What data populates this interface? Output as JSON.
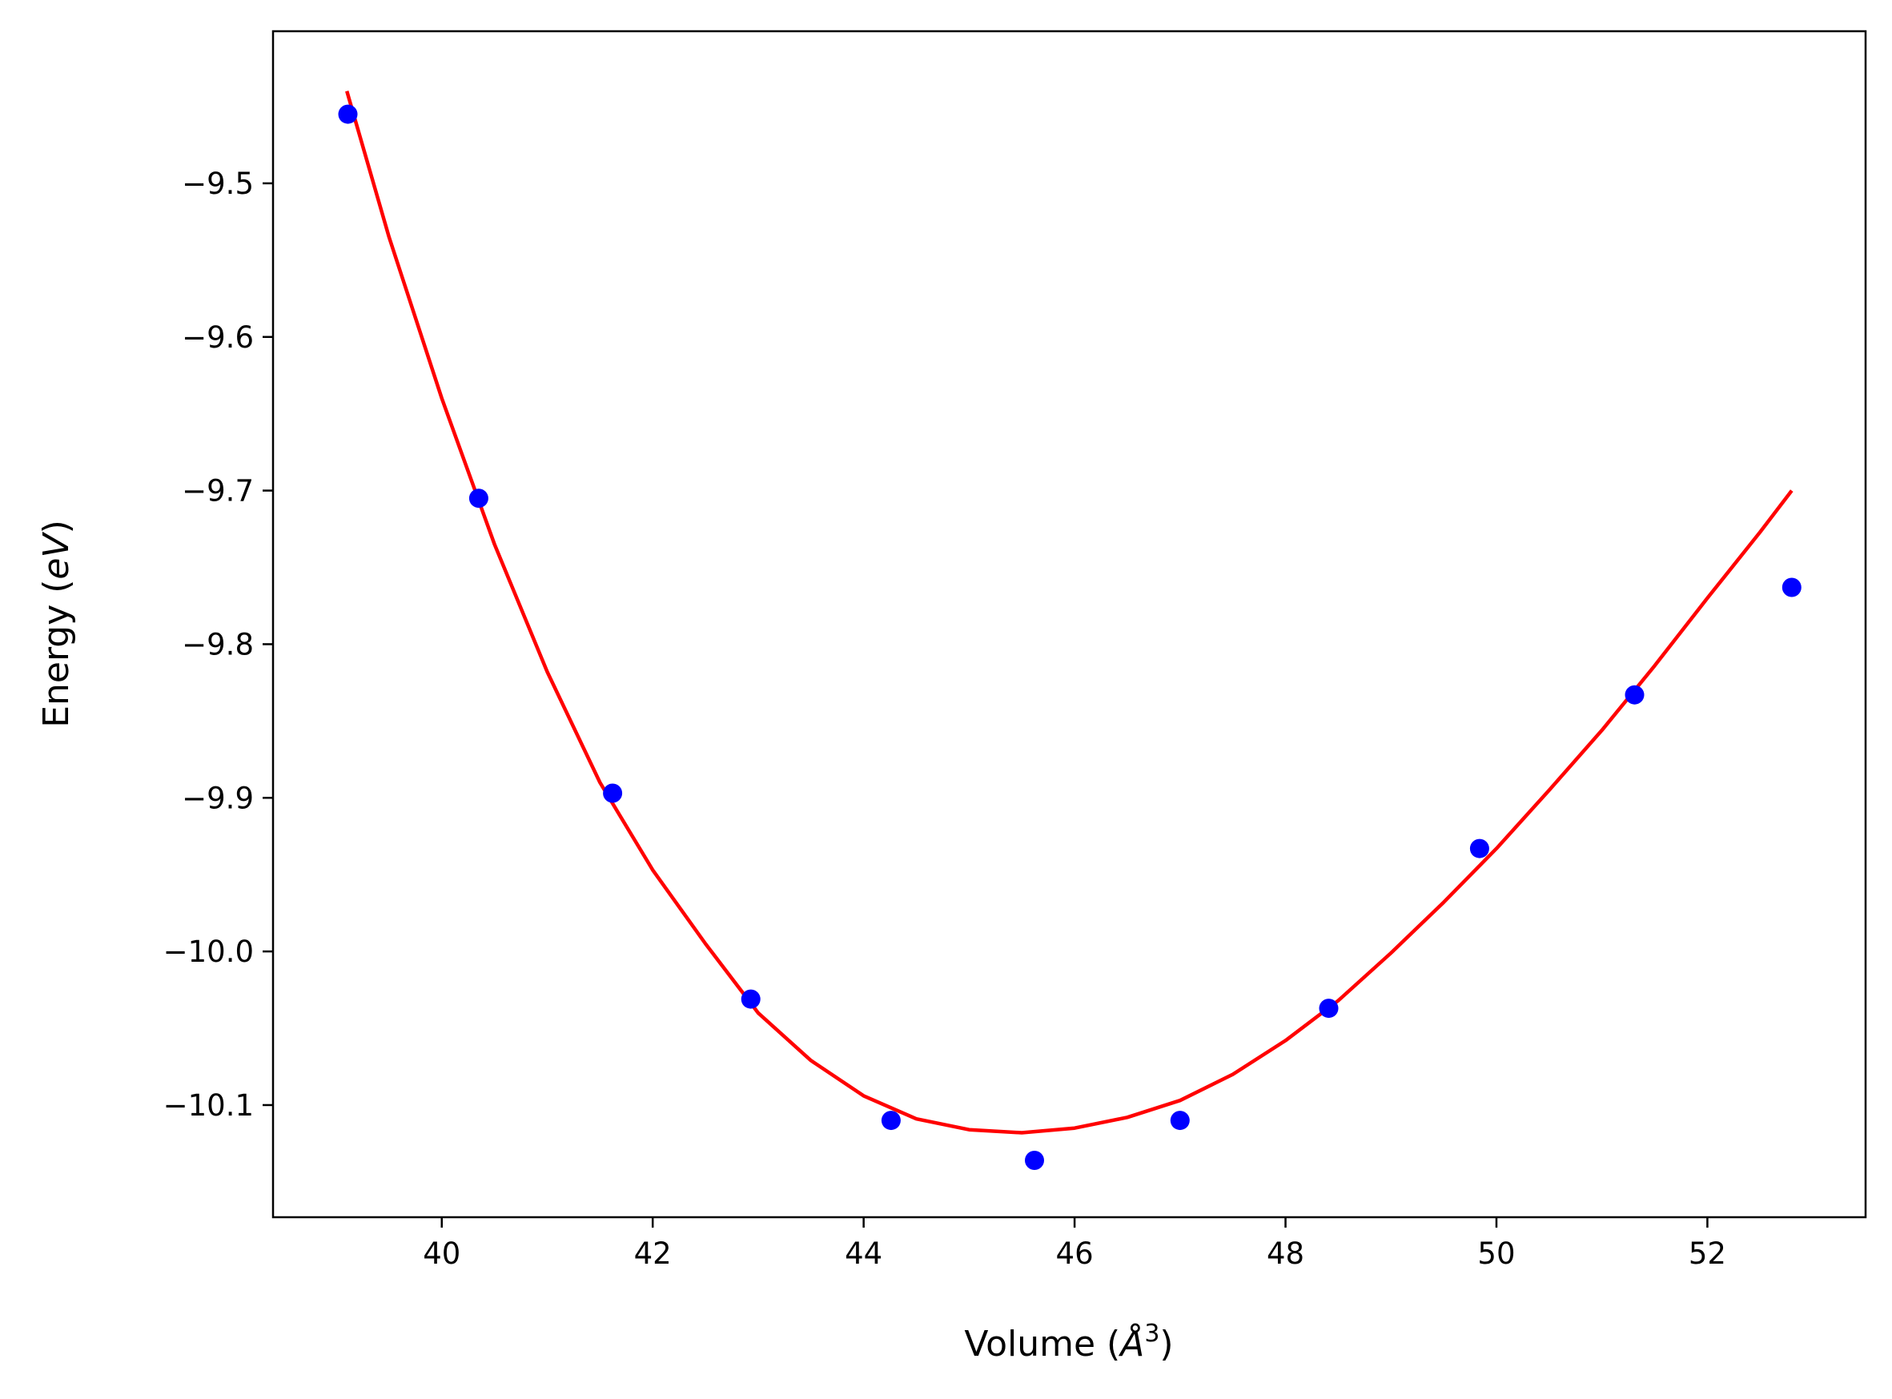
{
  "chart_data": {
    "type": "scatter",
    "title": "",
    "xlabel": {
      "prefix": "Volume (",
      "unit": "Å",
      "exponent": "3",
      "suffix": ")"
    },
    "ylabel": {
      "prefix": "Energy (",
      "unit": "eV",
      "suffix": ")"
    },
    "xlim": [
      38.4,
      53.5
    ],
    "ylim": [
      -10.173,
      -9.401
    ],
    "x_ticks": [
      40,
      42,
      44,
      46,
      48,
      50,
      52
    ],
    "y_ticks": [
      -9.5,
      -9.6,
      -9.7,
      -9.8,
      -9.9,
      -10.0,
      -10.1
    ],
    "x_tick_labels": [
      "40",
      "42",
      "44",
      "46",
      "48",
      "50",
      "52"
    ],
    "y_tick_labels": [
      "−9.5",
      "−9.6",
      "−9.7",
      "−9.8",
      "−9.9",
      "−10.0",
      "−10.1"
    ],
    "grid": false,
    "legend": "none",
    "series": [
      {
        "kind": "points",
        "color": "#0000ff",
        "x": [
          39.11,
          40.35,
          41.62,
          42.93,
          44.26,
          45.62,
          47.0,
          48.41,
          49.84,
          51.31,
          52.8
        ],
        "y": [
          -9.455,
          -9.705,
          -9.897,
          -10.031,
          -10.11,
          -10.136,
          -10.11,
          -10.037,
          -9.933,
          -9.833,
          -9.763
        ]
      },
      {
        "kind": "fit",
        "color": "#ff0000",
        "x": [
          39.1,
          39.5,
          40.0,
          40.5,
          41.0,
          41.5,
          42.0,
          42.5,
          43.0,
          43.5,
          44.0,
          44.5,
          45.0,
          45.5,
          46.0,
          46.5,
          47.0,
          47.5,
          48.0,
          48.5,
          49.0,
          49.5,
          50.0,
          50.5,
          51.0,
          51.5,
          52.0,
          52.5,
          52.8
        ],
        "y": [
          -9.44,
          -9.535,
          -9.64,
          -9.735,
          -9.818,
          -9.89,
          -9.947,
          -9.995,
          -10.04,
          -10.071,
          -10.094,
          -10.109,
          -10.116,
          -10.118,
          -10.115,
          -10.108,
          -10.097,
          -10.08,
          -10.058,
          -10.032,
          -10.001,
          -9.968,
          -9.933,
          -9.895,
          -9.856,
          -9.814,
          -9.77,
          -9.727,
          -9.7
        ]
      }
    ]
  }
}
